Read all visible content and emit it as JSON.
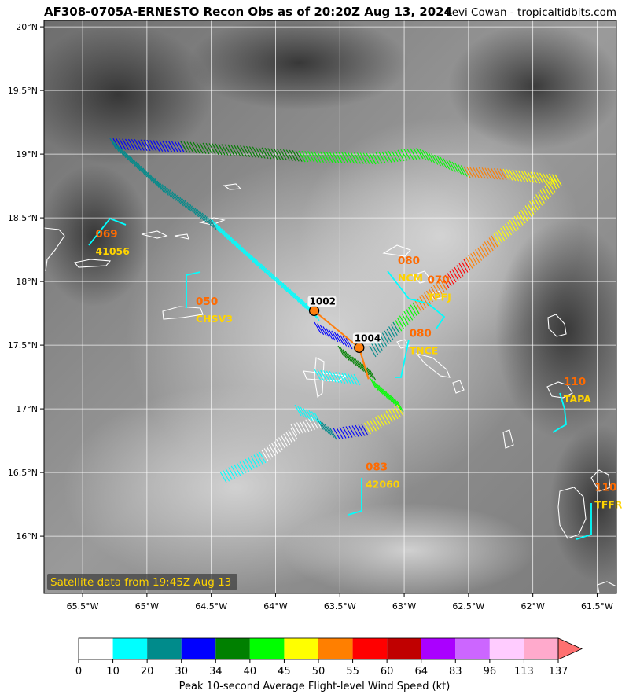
{
  "title": "AF308-0705A-ERNESTO Recon Obs as of 20:20Z Aug 13, 2024",
  "credit": "Levi Cowan - tropicaltidbits.com",
  "satellite_note": "Satellite data from 19:45Z Aug 13",
  "colors": {
    "land_outline": "#ffffff",
    "station_label": "#ffd400",
    "station_value": "#ff6a00",
    "grid": "#ffffff",
    "track": "#ff7f0e"
  },
  "map": {
    "lon_ticks": [
      "65.5°W",
      "65°W",
      "64.5°W",
      "64°W",
      "63.5°W",
      "63°W",
      "62.5°W",
      "62°W",
      "61.5°W"
    ],
    "lat_ticks": [
      "20°N",
      "19.5°N",
      "19°N",
      "18.5°N",
      "18°N",
      "17.5°N",
      "17°N",
      "16.5°N",
      "16°N"
    ],
    "lon_values": [
      -65.5,
      -65,
      -64.5,
      -64,
      -63.5,
      -63,
      -62.5,
      -62,
      -61.5
    ],
    "lat_values": [
      20,
      19.5,
      19,
      18.5,
      18,
      17.5,
      17,
      16.5,
      16
    ],
    "extent": {
      "lon_min": -65.8,
      "lon_max": -61.35,
      "lat_min": 15.55,
      "lat_max": 20.05
    }
  },
  "centers": [
    {
      "label": "1002",
      "lon": -63.7,
      "lat": 17.77
    },
    {
      "label": "1004",
      "lon": -63.35,
      "lat": 17.48
    }
  ],
  "stations": [
    {
      "id": "41056",
      "value": "069",
      "lon": -65.4,
      "lat": 18.26
    },
    {
      "id": "CHSV3",
      "value": "050",
      "lon": -64.62,
      "lat": 17.73
    },
    {
      "id": "NCM",
      "value": "080",
      "lon": -63.05,
      "lat": 18.05
    },
    {
      "id": "TFFJ",
      "value": "070",
      "lon": -62.82,
      "lat": 17.9
    },
    {
      "id": "TNCE",
      "value": "080",
      "lon": -62.96,
      "lat": 17.48
    },
    {
      "id": "TAPA",
      "value": "110",
      "lon": -61.76,
      "lat": 17.1
    },
    {
      "id": "42060",
      "value": "083",
      "lon": -63.3,
      "lat": 16.43
    },
    {
      "id": "TFFR",
      "value": "110",
      "lon": -61.52,
      "lat": 16.27
    }
  ],
  "colorbar": {
    "ticks": [
      "0",
      "10",
      "20",
      "30",
      "34",
      "40",
      "45",
      "50",
      "55",
      "60",
      "64",
      "83",
      "96",
      "113",
      "137"
    ],
    "colors": [
      "#ffffff",
      "#00ffff",
      "#008b8b",
      "#0000ff",
      "#008000",
      "#00ff00",
      "#ffff00",
      "#ff7f00",
      "#ff0000",
      "#c00000",
      "#aa00ff",
      "#cc66ff",
      "#ffccff",
      "#ffaacc"
    ],
    "extend_color": "#ff7070",
    "label": "Peak 10-second Average Flight-level Wind Speed (kt)"
  }
}
